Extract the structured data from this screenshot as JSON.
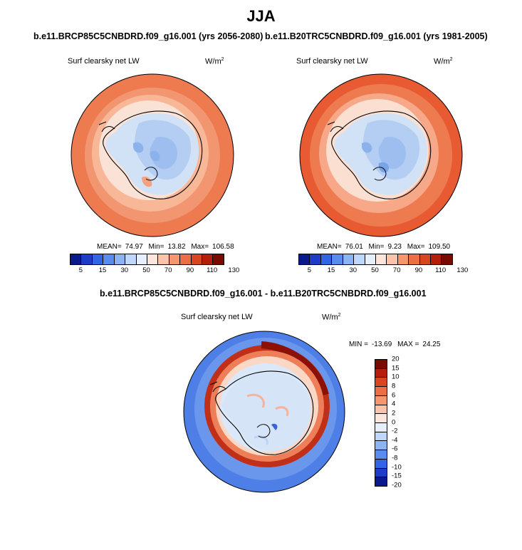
{
  "season": "JJA",
  "panels": [
    {
      "case": "b.e11.BRCP85C5CNBDRD.f09_g16.001 (yrs 2056-2080)",
      "variable": "Surf clearsky net LW",
      "units_base": "W/m",
      "units_exp": "2",
      "mean_label": "MEAN=",
      "mean": "74.97",
      "min_label": "Min=",
      "min": "13.82",
      "max_label": "Max=",
      "max": "106.58"
    },
    {
      "case": "b.e11.B20TRC5CNBDRD.f09_g16.001 (yrs 1981-2005)",
      "variable": "Surf clearsky net LW",
      "units_base": "W/m",
      "units_exp": "2",
      "mean_label": "MEAN=",
      "mean": "76.01",
      "min_label": "Min=",
      "min": "9.23",
      "max_label": "Max=",
      "max": "109.50"
    }
  ],
  "absolute_colorbar": {
    "colors": [
      "#0a1a8c",
      "#1e3cc8",
      "#3264e6",
      "#5a8cf0",
      "#8cb4f5",
      "#bed7fa",
      "#e6f0fc",
      "#fce6dc",
      "#fac3aa",
      "#f5966e",
      "#eb6e46",
      "#d7461e",
      "#b41e0a",
      "#780a00"
    ],
    "ticks": [
      "5",
      "15",
      "30",
      "50",
      "70",
      "90",
      "110",
      "130"
    ]
  },
  "difference": {
    "title": "b.e11.BRCP85C5CNBDRD.f09_g16.001 - b.e11.B20TRC5CNBDRD.f09_g16.001",
    "variable": "Surf clearsky net LW",
    "units_base": "W/m",
    "units_exp": "2",
    "min_label": "MIN =",
    "min": "-13.69",
    "max_label": "MAX =",
    "max": "24.25",
    "colorbar": {
      "colors": [
        "#780a00",
        "#b41e0a",
        "#d7461e",
        "#eb6e46",
        "#f5966e",
        "#fac3aa",
        "#fce6dc",
        "#e6f0fc",
        "#bed7fa",
        "#8cb4f5",
        "#5a8cf0",
        "#3264e6",
        "#1e3cc8",
        "#0a1a8c"
      ],
      "ticks": [
        "20",
        "15",
        "10",
        "8",
        "6",
        "4",
        "2",
        "0",
        "-2",
        "-4",
        "-6",
        "-8",
        "-10",
        "-15",
        "-20"
      ]
    }
  }
}
